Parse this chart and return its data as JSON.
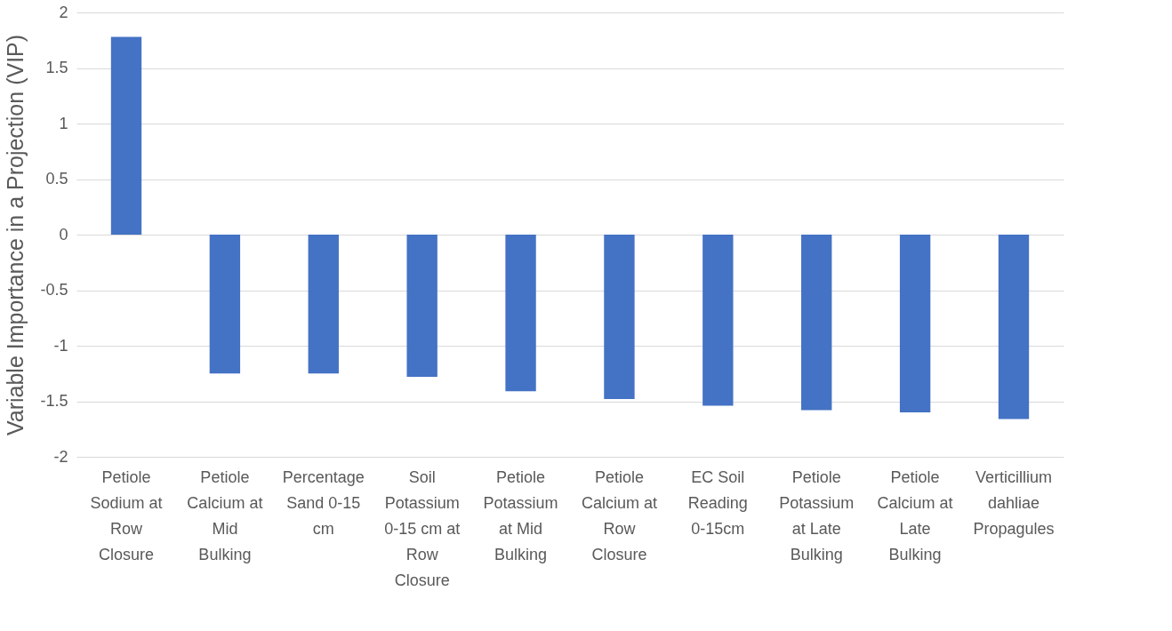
{
  "chart_data": {
    "type": "bar",
    "ylabel": "Variable Importance in a Projection (VIP)",
    "categories": [
      "Petiole Sodium at Row Closure",
      "Petiole Calcium at Mid Bulking",
      "Percentage Sand 0-15 cm",
      "Soil Potassium 0-15 cm at Row Closure",
      "Petiole Potassium at Mid Bulking",
      "Petiole Calcium at Row Closure",
      "EC Soil Reading 0-15cm",
      "Petiole Potassium at Late Bulking",
      "Petiole Calcium at Late Bulking",
      "Verticillium dahliae Propagules"
    ],
    "values": [
      1.78,
      -1.25,
      -1.25,
      -1.28,
      -1.41,
      -1.48,
      -1.54,
      -1.58,
      -1.6,
      -1.66
    ],
    "color": "#4472c4",
    "ylim": [
      -2,
      2
    ],
    "yticks": [
      -2,
      -1.5,
      -1,
      -0.5,
      0,
      0.5,
      1,
      1.5,
      2
    ],
    "grid": "y"
  }
}
